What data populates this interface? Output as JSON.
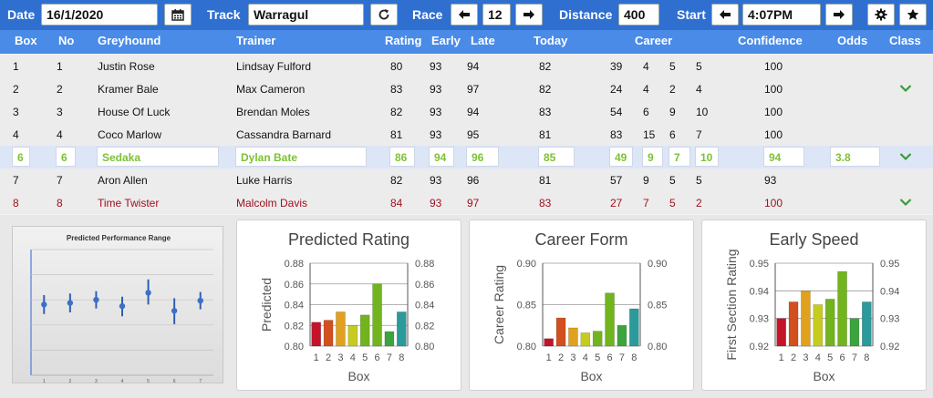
{
  "toolbar": {
    "date_label": "Date",
    "date_value": "16/1/2020",
    "track_label": "Track",
    "track_value": "Warragul",
    "race_label": "Race",
    "race_value": "12",
    "distance_label": "Distance",
    "distance_value": "400",
    "start_label": "Start",
    "start_value": "4:07PM",
    "icons": [
      "calendar-icon",
      "refresh-icon",
      "arrow-left-icon",
      "arrow-right-icon",
      "gear-icon",
      "star-icon"
    ]
  },
  "table": {
    "headers": [
      "Box",
      "No",
      "Greyhound",
      "Trainer",
      "Rating",
      "Early",
      "Late",
      "Today",
      "Career",
      "Confidence",
      "Odds",
      "Class"
    ],
    "rows": [
      {
        "box": "1",
        "no": "1",
        "greyhound": "Justin Rose",
        "trainer": "Lindsay Fulford",
        "rating": "80",
        "early": "93",
        "late": "94",
        "today": "82",
        "c1": "39",
        "c2": "4",
        "c3": "5",
        "c4": "5",
        "confidence": "100",
        "odds": "",
        "class_chevron": false,
        "style": "normal"
      },
      {
        "box": "2",
        "no": "2",
        "greyhound": "Kramer Bale",
        "trainer": "Max Cameron",
        "rating": "83",
        "early": "93",
        "late": "97",
        "today": "82",
        "c1": "24",
        "c2": "4",
        "c3": "2",
        "c4": "4",
        "confidence": "100",
        "odds": "",
        "class_chevron": true,
        "style": "normal"
      },
      {
        "box": "3",
        "no": "3",
        "greyhound": "House Of Luck",
        "trainer": "Brendan Moles",
        "rating": "82",
        "early": "93",
        "late": "94",
        "today": "83",
        "c1": "54",
        "c2": "6",
        "c3": "9",
        "c4": "10",
        "confidence": "100",
        "odds": "",
        "class_chevron": false,
        "style": "normal"
      },
      {
        "box": "4",
        "no": "4",
        "greyhound": "Coco Marlow",
        "trainer": "Cassandra Barnard",
        "rating": "81",
        "early": "93",
        "late": "95",
        "today": "81",
        "c1": "83",
        "c2": "15",
        "c3": "6",
        "c4": "7",
        "confidence": "100",
        "odds": "",
        "class_chevron": false,
        "style": "normal"
      },
      {
        "box": "6",
        "no": "6",
        "greyhound": "Sedaka",
        "trainer": "Dylan Bate",
        "rating": "86",
        "early": "94",
        "late": "96",
        "today": "85",
        "c1": "49",
        "c2": "9",
        "c3": "7",
        "c4": "10",
        "confidence": "94",
        "odds": "3.8",
        "class_chevron": true,
        "style": "selected"
      },
      {
        "box": "7",
        "no": "7",
        "greyhound": "Aron Allen",
        "trainer": "Luke Harris",
        "rating": "82",
        "early": "93",
        "late": "96",
        "today": "81",
        "c1": "57",
        "c2": "9",
        "c3": "5",
        "c4": "5",
        "confidence": "93",
        "odds": "",
        "class_chevron": false,
        "style": "normal"
      },
      {
        "box": "8",
        "no": "8",
        "greyhound": "Time Twister",
        "trainer": "Malcolm Davis",
        "rating": "84",
        "early": "93",
        "late": "97",
        "today": "83",
        "c1": "27",
        "c2": "7",
        "c3": "5",
        "c4": "2",
        "confidence": "100",
        "odds": "",
        "class_chevron": true,
        "style": "red"
      }
    ]
  },
  "colors": {
    "toolbar": "#2f6fd0",
    "header": "#4a8be8",
    "selected_text": "#7cc233",
    "red_text": "#a01020",
    "chevron": "#3a9a3a",
    "bars": [
      "#c4142a",
      "#d2501e",
      "#e0a21e",
      "#c6cc1e",
      "#72b41e",
      "#3ca43c",
      "#2a9a9a"
    ]
  },
  "chart_data": [
    {
      "type": "scatter",
      "title": "Predicted Performance Range",
      "categories": [
        "1",
        "2",
        "3",
        "4",
        "5",
        "6",
        "7"
      ],
      "values": [
        0.83,
        0.832,
        0.836,
        0.828,
        0.845,
        0.822,
        0.835
      ],
      "low": [
        0.818,
        0.82,
        0.825,
        0.815,
        0.83,
        0.805,
        0.824
      ],
      "high": [
        0.842,
        0.844,
        0.847,
        0.84,
        0.862,
        0.838,
        0.846
      ],
      "ylim": [
        0.74,
        0.9
      ],
      "grid": true
    },
    {
      "type": "bar",
      "title": "Predicted Rating",
      "categories": [
        "1",
        "2",
        "3",
        "4",
        "5",
        "6",
        "7",
        "8"
      ],
      "values": [
        0.823,
        0.825,
        0.833,
        0.82,
        0.83,
        0.86,
        0.814,
        0.833
      ],
      "xlabel": "Box",
      "ylabel": "Predicted",
      "ylim": [
        0.8,
        0.88
      ],
      "yticks": [
        "0.80",
        "0.82",
        "0.84",
        "0.86",
        "0.88"
      ],
      "secondary_axis": true,
      "grid": true
    },
    {
      "type": "bar",
      "title": "Career Form",
      "categories": [
        "1",
        "2",
        "3",
        "4",
        "5",
        "6",
        "7",
        "8"
      ],
      "values": [
        0.809,
        0.834,
        0.822,
        0.816,
        0.818,
        0.864,
        0.825,
        0.845
      ],
      "xlabel": "Box",
      "ylabel": "Career Rating",
      "ylim": [
        0.8,
        0.9
      ],
      "yticks": [
        "0.80",
        "0.85",
        "0.90"
      ],
      "secondary_axis": true,
      "grid": true
    },
    {
      "type": "bar",
      "title": "Early Speed",
      "categories": [
        "1",
        "2",
        "3",
        "4",
        "5",
        "6",
        "7",
        "8"
      ],
      "values": [
        0.93,
        0.936,
        0.94,
        0.935,
        0.937,
        0.947,
        0.93,
        0.936
      ],
      "xlabel": "Box",
      "ylabel": "First Section Rating",
      "ylim": [
        0.92,
        0.95
      ],
      "yticks": [
        "0.92",
        "0.93",
        "0.94",
        "0.95"
      ],
      "secondary_axis": true,
      "grid": true
    }
  ]
}
